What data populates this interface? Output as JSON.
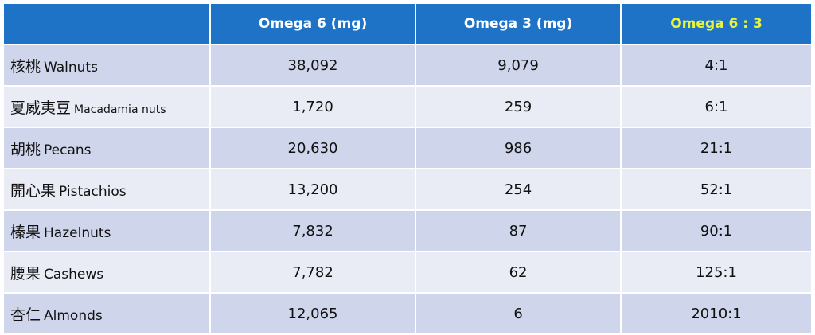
{
  "header": {
    "col_name": "",
    "col_omega6": "Omega 6 (mg)",
    "col_omega3": "Omega 3 (mg)",
    "col_ratio": "Omega 6 : 3"
  },
  "colors": {
    "header_bg": "#1f73c7",
    "header_text": "#ffffff",
    "ratio_header_text": "#e8f53a",
    "row_odd": "#cfd5ea",
    "row_even": "#e9ebf5"
  },
  "rows": [
    {
      "zh": "核桃",
      "en": "Walnuts",
      "omega6": "38,092",
      "omega3": "9,079",
      "ratio": "4:1"
    },
    {
      "zh": "夏威夷豆",
      "en": "Macadamia nuts",
      "omega6": "1,720",
      "omega3": "259",
      "ratio": "6:1"
    },
    {
      "zh": "胡桃",
      "en": "Pecans",
      "omega6": "20,630",
      "omega3": "986",
      "ratio": "21:1"
    },
    {
      "zh": "開心果",
      "en": "Pistachios",
      "omega6": "13,200",
      "omega3": "254",
      "ratio": "52:1"
    },
    {
      "zh": "榛果",
      "en": "Hazelnuts",
      "omega6": "7,832",
      "omega3": "87",
      "ratio": "90:1"
    },
    {
      "zh": "腰果",
      "en": "Cashews",
      "omega6": "7,782",
      "omega3": "62",
      "ratio": "125:1"
    },
    {
      "zh": "杏仁",
      "en": "Almonds",
      "omega6": "12,065",
      "omega3": "6",
      "ratio": "2010:1"
    }
  ]
}
